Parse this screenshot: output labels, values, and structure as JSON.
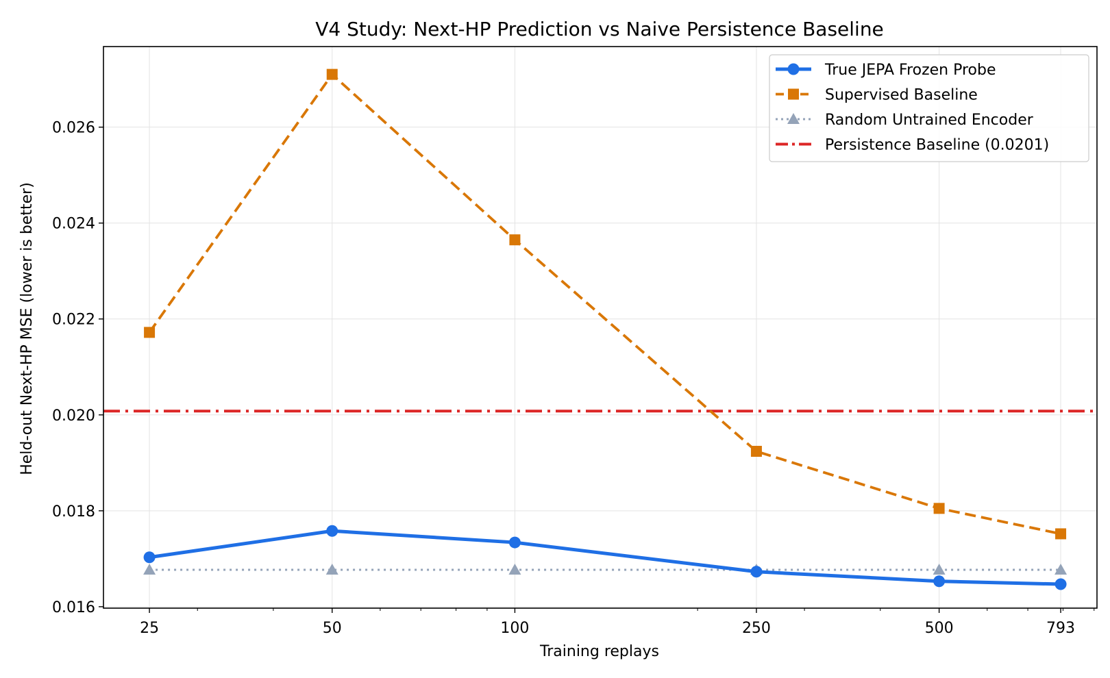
{
  "chart_data": {
    "type": "line",
    "title": "V4 Study: Next-HP Prediction vs Naive Persistence Baseline",
    "xlabel": "Training replays",
    "ylabel": "Held-out Next-HP MSE (lower is better)",
    "x_scale": "log",
    "x": [
      25,
      50,
      100,
      250,
      500,
      793
    ],
    "x_tick_labels": [
      "25",
      "50",
      "100",
      "250",
      "500",
      "793"
    ],
    "xlim": [
      21,
      910
    ],
    "ylim": [
      0.01597,
      0.02768
    ],
    "y_ticks": [
      0.016,
      0.018,
      0.02,
      0.022,
      0.024,
      0.026
    ],
    "y_tick_labels": [
      "0.016",
      "0.018",
      "0.020",
      "0.022",
      "0.024",
      "0.026"
    ],
    "grid": true,
    "legend_position": "top-right",
    "series": [
      {
        "name": "True JEPA Frozen Probe",
        "values": [
          0.01703,
          0.01758,
          0.01734,
          0.01673,
          0.01653,
          0.01647
        ],
        "color": "#1f6fe5",
        "line_style": "solid",
        "marker": "circle"
      },
      {
        "name": "Supervised Baseline",
        "values": [
          0.02172,
          0.0271,
          0.02365,
          0.01924,
          0.01805,
          0.01752
        ],
        "color": "#d97706",
        "line_style": "dashed",
        "marker": "square"
      },
      {
        "name": "Random Untrained Encoder",
        "values": [
          0.01677,
          0.01677,
          0.01677,
          0.01677,
          0.01677,
          0.01677
        ],
        "color": "#94a3b8",
        "line_style": "dotted",
        "marker": "triangle"
      }
    ],
    "reference_line": {
      "name": "Persistence Baseline (0.0201)",
      "value": 0.02008,
      "color": "#dc2626",
      "line_style": "dashdot"
    }
  }
}
